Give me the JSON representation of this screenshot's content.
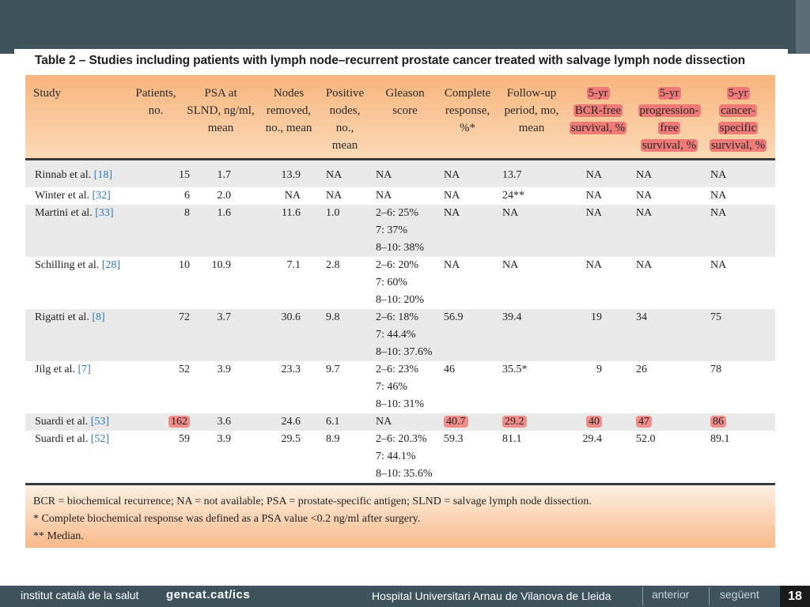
{
  "table": {
    "title": "Table 2 – Studies including patients with lymph node–recurrent prostate cancer treated with salvage lymph node dissection",
    "headers": [
      "Study",
      "Patients, no.",
      "PSA at SLND, ng/ml, mean",
      "Nodes removed, no., mean",
      "Positive nodes, no., mean",
      "Gleason score",
      "Complete response, %*",
      "Follow-up period, mo, mean",
      "5-yr BCR-free survival, %",
      "5-yr progression-free survival, %",
      "5-yr cancer-specific survival, %"
    ],
    "header_lines": [
      [
        "Study"
      ],
      [
        "Patients,",
        "no."
      ],
      [
        "PSA at",
        "SLND, ng/ml,",
        "mean"
      ],
      [
        "Nodes",
        "removed,",
        "no., mean"
      ],
      [
        "Positive",
        "nodes,",
        "no.,",
        "mean"
      ],
      [
        "Gleason",
        "score"
      ],
      [
        "Complete",
        "response,",
        "%*"
      ],
      [
        "Follow-up",
        "period, mo,",
        "mean"
      ],
      [
        "5-yr",
        "BCR-free",
        "survival, %"
      ],
      [
        "5-yr",
        "progression-",
        "free",
        "survival, %"
      ],
      [
        "5-yr",
        "cancer-",
        "specific",
        "survival, %"
      ]
    ],
    "rows": [
      {
        "study": "Rinnab et al.",
        "ref": "[18]",
        "patients": "15",
        "psa": "1.7",
        "nodes": "13.9",
        "positive": "NA",
        "gleason": [
          "NA"
        ],
        "complete": "NA",
        "followup": "13.7",
        "bcr": "NA",
        "prog": "NA",
        "css": "NA"
      },
      {
        "study": "Winter et al.",
        "ref": "[32]",
        "patients": "6",
        "psa": "2.0",
        "nodes": "NA",
        "positive": "NA",
        "gleason": [
          "NA"
        ],
        "complete": "NA",
        "followup": "24**",
        "bcr": "NA",
        "prog": "NA",
        "css": "NA"
      },
      {
        "study": "Martini et al.",
        "ref": "[33]",
        "patients": "8",
        "psa": "1.6",
        "nodes": "11.6",
        "positive": "1.0",
        "gleason": [
          "2–6: 25%",
          "7: 37%",
          "8–10: 38%"
        ],
        "complete": "NA",
        "followup": "NA",
        "bcr": "NA",
        "prog": "NA",
        "css": "NA"
      },
      {
        "study": "Schilling et al.",
        "ref": "[28]",
        "patients": "10",
        "psa": "10.9",
        "nodes": "7.1",
        "positive": "2.8",
        "gleason": [
          "2–6: 20%",
          "7: 60%",
          "8–10: 20%"
        ],
        "complete": "NA",
        "followup": "NA",
        "bcr": "NA",
        "prog": "NA",
        "css": "NA"
      },
      {
        "study": "Rigatti et al.",
        "ref": "[8]",
        "patients": "72",
        "psa": "3.7",
        "nodes": "30.6",
        "positive": "9.8",
        "gleason": [
          "2–6: 18%",
          "7: 44.4%",
          "8–10: 37.6%"
        ],
        "complete": "56.9",
        "followup": "39.4",
        "bcr": "19",
        "prog": "34",
        "css": "75"
      },
      {
        "study": "Jilg et al.",
        "ref": "[7]",
        "patients": "52",
        "psa": "3.9",
        "nodes": "23.3",
        "positive": "9.7",
        "gleason": [
          "2–6: 23%",
          "7: 46%",
          "8–10: 31%"
        ],
        "complete": "46",
        "followup": "35.5*",
        "bcr": "9",
        "prog": "26",
        "css": "78"
      },
      {
        "study": "Suardi et al.",
        "ref": "[53]",
        "patients": "162",
        "psa": "3.6",
        "nodes": "24.6",
        "positive": "6.1",
        "gleason": [
          "NA"
        ],
        "complete": "40.7",
        "followup": "29.2",
        "bcr": "40",
        "prog": "47",
        "css": "86"
      },
      {
        "study": "Suardi et al.",
        "ref": "[52]",
        "patients": "59",
        "psa": "3.9",
        "nodes": "29.5",
        "positive": "8.9",
        "gleason": [
          "2–6: 20.3%",
          "7: 44.1%",
          "8–10: 35.6%"
        ],
        "complete": "59.3",
        "followup": "81.1",
        "bcr": "29.4",
        "prog": "52.0",
        "css": "89.1"
      }
    ],
    "highlight_color": "#f08c8a",
    "footnotes": [
      "BCR = biochemical recurrence; NA = not available; PSA = prostate-specific antigen; SLND = salvage lymph node dissection.",
      "* Complete biochemical response was defined as a PSA value <0.2 ng/ml after surgery.",
      "** Median."
    ]
  },
  "footer": {
    "org": "institut català de la salut",
    "site": "gencat.cat/ics",
    "hospital": "Hospital Universitari Arnau de Vilanova de Lleida",
    "prev": "anterior",
    "next": "següent",
    "page": "18"
  },
  "colors": {
    "bar": "#3f535d",
    "header_orange": "#f8b57e",
    "highlight": "#f08c8a",
    "row_grey": "#e9e9ea",
    "link": "#2b78b8"
  }
}
